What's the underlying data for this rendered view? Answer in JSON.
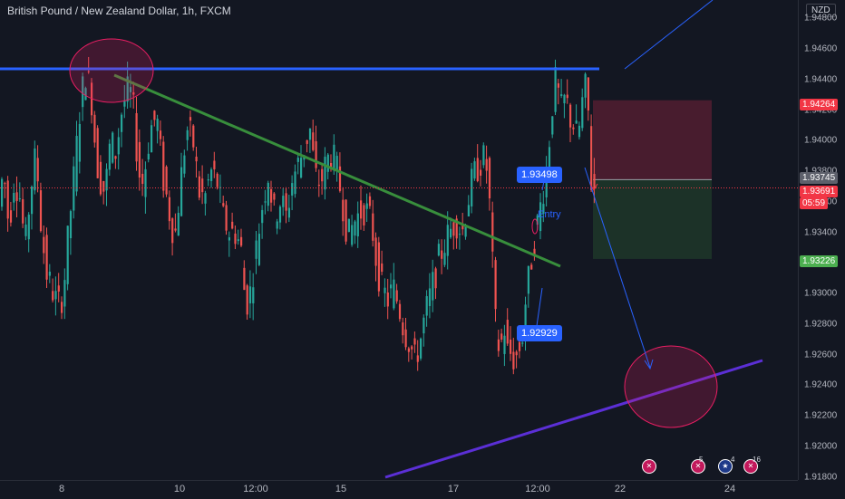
{
  "symbol": {
    "title": "British Pound / New Zealand Dollar, 1h, FXCM",
    "currency": "NZD"
  },
  "price_axis": {
    "ticks": [
      "1.94800",
      "1.94600",
      "1.94400",
      "1.94200",
      "1.94000",
      "1.93800",
      "1.93600",
      "1.93400",
      "1.93200",
      "1.93000",
      "1.92800",
      "1.92600",
      "1.92400",
      "1.92200",
      "1.92000",
      "1.91800"
    ],
    "tick_values": [
      1.948,
      1.946,
      1.944,
      1.942,
      1.94,
      1.938,
      1.936,
      1.934,
      1.932,
      1.93,
      1.928,
      1.926,
      1.924,
      1.922,
      1.92,
      1.918
    ],
    "badges": {
      "stop": {
        "label": "1.94264",
        "value": 1.94264,
        "color": "#f23645"
      },
      "entry": {
        "label": "1.93745",
        "value": 1.93745,
        "color": "#5d606b"
      },
      "last": {
        "label": "1.93691",
        "value": 1.93691,
        "color": "#f23645",
        "countdown": "05:59"
      },
      "target": {
        "label": "1.93226",
        "value": 1.93226,
        "color": "#4caf50"
      }
    }
  },
  "time_axis": {
    "labels": [
      "8",
      "10",
      "12:00",
      "15",
      "17",
      "12:00",
      "22",
      "24"
    ]
  },
  "annotations": {
    "callout_high": "1.93498",
    "callout_low": "1.92929",
    "entry_label": "Entry"
  },
  "events": [
    {
      "name": "uk-event-icon-1",
      "count": ""
    },
    {
      "name": "uk-event-icon-2",
      "count": "5"
    },
    {
      "name": "nz-event-icon",
      "count": "4"
    },
    {
      "name": "uk-event-icon-3",
      "count": "16"
    }
  ],
  "colors": {
    "background": "#131722",
    "bull": "#26a69a",
    "bear": "#ef5350",
    "resistance": "#2962ff",
    "trendline": "#388e3c",
    "support": "#5b2fd6",
    "short_risk": "#5b1f33",
    "short_reward": "#1f3a2b",
    "zone_circle": "#e91e63"
  },
  "chart_data": {
    "type": "candlestick",
    "title": "British Pound / New Zealand Dollar, 1h, FXCM",
    "ylim": [
      1.9178,
      1.9492
    ],
    "grid": false,
    "levels": [
      {
        "name": "resistance",
        "value": 1.945
      },
      {
        "name": "stop",
        "value": 1.94264
      },
      {
        "name": "entry",
        "value": 1.93745
      },
      {
        "name": "last",
        "value": 1.93691
      },
      {
        "name": "target",
        "value": 1.93226
      }
    ],
    "marked_prices": [
      1.93498,
      1.92929
    ],
    "price_path": [
      [
        0,
        1.9352
      ],
      [
        6,
        1.9382
      ],
      [
        12,
        1.9344
      ],
      [
        18,
        1.9376
      ],
      [
        24,
        1.9364
      ],
      [
        30,
        1.933
      ],
      [
        36,
        1.9368
      ],
      [
        42,
        1.9392
      ],
      [
        48,
        1.934
      ],
      [
        54,
        1.9312
      ],
      [
        60,
        1.9302
      ],
      [
        66,
        1.9292
      ],
      [
        72,
        1.93
      ],
      [
        78,
        1.9342
      ],
      [
        84,
        1.9378
      ],
      [
        90,
        1.9418
      ],
      [
        96,
        1.9446
      ],
      [
        100,
        1.9438
      ],
      [
        104,
        1.9424
      ],
      [
        108,
        1.939
      ],
      [
        112,
        1.9376
      ],
      [
        118,
        1.9366
      ],
      [
        124,
        1.94
      ],
      [
        130,
        1.9392
      ],
      [
        136,
        1.9418
      ],
      [
        142,
        1.9432
      ],
      [
        148,
        1.943
      ],
      [
        155,
        1.938
      ],
      [
        160,
        1.9372
      ],
      [
        168,
        1.9408
      ],
      [
        175,
        1.9416
      ],
      [
        182,
        1.9376
      ],
      [
        188,
        1.9356
      ],
      [
        195,
        1.9336
      ],
      [
        202,
        1.9376
      ],
      [
        208,
        1.9408
      ],
      [
        215,
        1.94
      ],
      [
        222,
        1.9366
      ],
      [
        228,
        1.9362
      ],
      [
        235,
        1.938
      ],
      [
        242,
        1.9372
      ],
      [
        248,
        1.935
      ],
      [
        255,
        1.934
      ],
      [
        262,
        1.934
      ],
      [
        268,
        1.933
      ],
      [
        273,
        1.9292
      ],
      [
        278,
        1.93
      ],
      [
        285,
        1.933
      ],
      [
        292,
        1.936
      ],
      [
        298,
        1.9378
      ],
      [
        305,
        1.935
      ],
      [
        312,
        1.9362
      ],
      [
        318,
        1.935
      ],
      [
        325,
        1.9376
      ],
      [
        332,
        1.9386
      ],
      [
        338,
        1.9396
      ],
      [
        344,
        1.9408
      ],
      [
        350,
        1.9376
      ],
      [
        356,
        1.9372
      ],
      [
        362,
        1.9386
      ],
      [
        368,
        1.9392
      ],
      [
        374,
        1.938
      ],
      [
        380,
        1.936
      ],
      [
        386,
        1.9336
      ],
      [
        392,
        1.9346
      ],
      [
        398,
        1.9352
      ],
      [
        405,
        1.9356
      ],
      [
        412,
        1.9346
      ],
      [
        418,
        1.9318
      ],
      [
        424,
        1.9302
      ],
      [
        430,
        1.9296
      ],
      [
        436,
        1.9304
      ],
      [
        442,
        1.9292
      ],
      [
        448,
        1.9276
      ],
      [
        454,
        1.9268
      ],
      [
        460,
        1.9256
      ],
      [
        466,
        1.927
      ],
      [
        472,
        1.9288
      ],
      [
        478,
        1.9302
      ],
      [
        485,
        1.932
      ],
      [
        492,
        1.9332
      ],
      [
        498,
        1.934
      ],
      [
        505,
        1.9348
      ],
      [
        512,
        1.934
      ],
      [
        518,
        1.936
      ],
      [
        524,
        1.9376
      ],
      [
        530,
        1.9384
      ],
      [
        536,
        1.9388
      ],
      [
        540,
        1.938
      ],
      [
        544,
        1.934
      ],
      [
        547,
        1.9296
      ],
      [
        550,
        1.927
      ],
      [
        554,
        1.9262
      ],
      [
        558,
        1.928
      ],
      [
        562,
        1.9262
      ],
      [
        566,
        1.926
      ],
      [
        570,
        1.9256
      ],
      [
        574,
        1.9262
      ],
      [
        578,
        1.927
      ],
      [
        582,
        1.9296
      ],
      [
        586,
        1.9312
      ],
      [
        590,
        1.933
      ],
      [
        594,
        1.9342
      ],
      [
        598,
        1.9356
      ],
      [
        602,
        1.937
      ],
      [
        606,
        1.9386
      ],
      [
        610,
        1.9414
      ],
      [
        614,
        1.944
      ],
      [
        618,
        1.943
      ],
      [
        622,
        1.9418
      ],
      [
        626,
        1.943
      ],
      [
        630,
        1.9416
      ],
      [
        634,
        1.9412
      ],
      [
        638,
        1.9404
      ],
      [
        642,
        1.941
      ],
      [
        646,
        1.9434
      ],
      [
        650,
        1.9434
      ],
      [
        654,
        1.9374
      ],
      [
        656,
        1.9369
      ]
    ]
  }
}
